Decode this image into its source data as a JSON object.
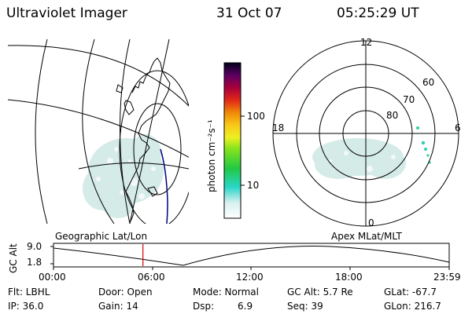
{
  "header": {
    "title": "Ultraviolet Imager",
    "date": "31 Oct 07",
    "time": "05:25:29 UT"
  },
  "colorbar": {
    "unit_label": "photon cm⁻²s⁻¹",
    "ticks": [
      "100",
      "10"
    ]
  },
  "polar": {
    "hour_labels": {
      "top": "12",
      "left": "18",
      "right": "6",
      "bottom": "0"
    },
    "lat_labels": [
      "60",
      "70",
      "80"
    ]
  },
  "captions": {
    "left": "Geographic Lat/Lon",
    "right": "Apex MLat/MLT"
  },
  "alt_plot": {
    "ylabel": "GC Alt",
    "yticks": [
      "9.0",
      "1.8"
    ],
    "xticks": [
      "00:00",
      "06:00",
      "12:00",
      "18:00",
      "23:59"
    ],
    "marker_time_hours": 5.425
  },
  "status": {
    "flt": "Flt: LBHL",
    "ip": "IP: 36.0",
    "door": "Door: Open",
    "gain": "Gain: 14",
    "mode": "Mode: Normal",
    "dsp_label": "Dsp:",
    "dsp_value": "6.9",
    "gc_alt": "GC Alt: 5.7 Re",
    "seq": "Seq: 39",
    "glat": "GLat: -67.7",
    "glon": "GLon: 216.7"
  },
  "colors": {
    "marker": "#cc0000",
    "track": "#000080",
    "emission": "#cfe8e4",
    "dots": "#33ccaa"
  }
}
